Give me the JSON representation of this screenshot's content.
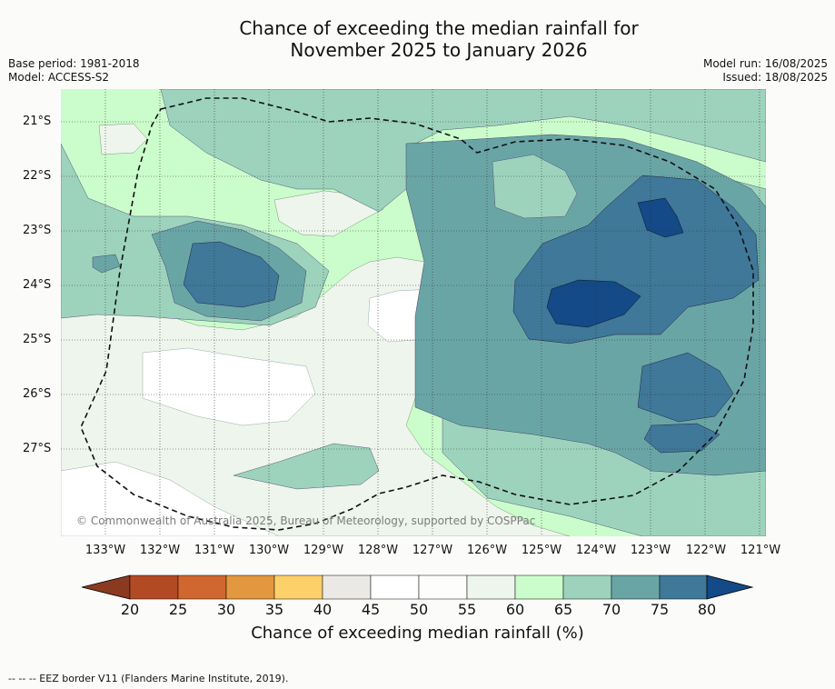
{
  "title_line1": "Chance of exceeding the median rainfall for",
  "title_line2": "November 2025 to January 2026",
  "base_period": "Base period: 1981-2018",
  "model": "Model: ACCESS-S2",
  "model_run": "Model run: 16/08/2025",
  "issued": "Issued: 18/08/2025",
  "copyright": "© Commonwealth of Australia 2025, Bureau of Meteorology, supported by COSPPac",
  "lat_labels": [
    "21°S",
    "22°S",
    "23°S",
    "24°S",
    "25°S",
    "26°S",
    "27°S"
  ],
  "lon_labels": [
    "133°W",
    "132°W",
    "131°W",
    "130°W",
    "129°W",
    "128°W",
    "127°W",
    "126°W",
    "125°W",
    "124°W",
    "123°W",
    "122°W",
    "121°W"
  ],
  "colorbar": {
    "ticks": [
      "20",
      "25",
      "30",
      "35",
      "40",
      "45",
      "50",
      "55",
      "60",
      "65",
      "70",
      "75",
      "80"
    ],
    "title": "Chance of exceeding median rainfall (%)",
    "colors": [
      "#8b3a22",
      "#b24a24",
      "#d0672f",
      "#e3973f",
      "#fdd06a",
      "#ebe9e6",
      "#ffffff",
      "#fdfdfb",
      "#eef5ec",
      "#cbfccb",
      "#9dd3bd",
      "#6aa5a6",
      "#3f7898",
      "#134a87"
    ]
  },
  "footnote": "--  --  -- EEZ border V11 (Flanders Marine Institute, 2019)."
}
